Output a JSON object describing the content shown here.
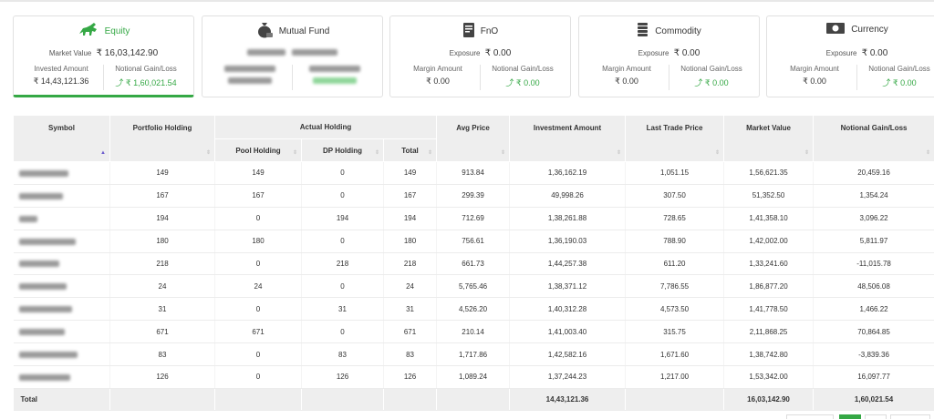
{
  "cards": [
    {
      "title": "Equity",
      "icon": "bull-icon",
      "mid_label": "Market Value",
      "mid_value": "₹ 16,03,142.90",
      "left_label": "Invested Amount",
      "left_value": "₹ 14,43,121.36",
      "right_label": "Notional Gain/Loss",
      "right_value": "₹ 1,60,021.54"
    },
    {
      "title": "Mutual Fund",
      "icon": "money-bag-icon"
    },
    {
      "title": "FnO",
      "icon": "document-icon",
      "mid_label": "Exposure",
      "mid_value": "₹ 0.00",
      "left_label": "Margin Amount",
      "left_value": "₹ 0.00",
      "right_label": "Notional Gain/Loss",
      "right_value": "₹ 0.00"
    },
    {
      "title": "Commodity",
      "icon": "coin-stack-icon",
      "mid_label": "Exposure",
      "mid_value": "₹ 0.00",
      "left_label": "Margin Amount",
      "left_value": "₹ 0.00",
      "right_label": "Notional Gain/Loss",
      "right_value": "₹ 0.00"
    },
    {
      "title": "Currency",
      "icon": "banknote-icon",
      "mid_label": "Exposure",
      "mid_value": "₹ 0.00",
      "left_label": "Margin Amount",
      "left_value": "₹ 0.00",
      "right_label": "Notional Gain/Loss",
      "right_value": "₹ 0.00"
    }
  ],
  "table": {
    "headers": {
      "symbol": "Symbol",
      "portfolio_holding": "Portfolio Holding",
      "actual_holding": "Actual Holding",
      "pool_holding": "Pool Holding",
      "dp_holding": "DP Holding",
      "total": "Total",
      "avg_price": "Avg Price",
      "investment_amount": "Investment Amount",
      "last_trade_price": "Last Trade Price",
      "market_value": "Market Value",
      "notional_gain_loss": "Notional Gain/Loss"
    },
    "rows": [
      {
        "portfolio": "149",
        "pool": "149",
        "dp": "0",
        "total": "149",
        "avg": "913.84",
        "invest": "1,36,162.19",
        "ltp": "1,051.15",
        "mv": "1,56,621.35",
        "gain": "20,459.16"
      },
      {
        "portfolio": "167",
        "pool": "167",
        "dp": "0",
        "total": "167",
        "avg": "299.39",
        "invest": "49,998.26",
        "ltp": "307.50",
        "mv": "51,352.50",
        "gain": "1,354.24"
      },
      {
        "portfolio": "194",
        "pool": "0",
        "dp": "194",
        "total": "194",
        "avg": "712.69",
        "invest": "1,38,261.88",
        "ltp": "728.65",
        "mv": "1,41,358.10",
        "gain": "3,096.22"
      },
      {
        "portfolio": "180",
        "pool": "180",
        "dp": "0",
        "total": "180",
        "avg": "756.61",
        "invest": "1,36,190.03",
        "ltp": "788.90",
        "mv": "1,42,002.00",
        "gain": "5,811.97"
      },
      {
        "portfolio": "218",
        "pool": "0",
        "dp": "218",
        "total": "218",
        "avg": "661.73",
        "invest": "1,44,257.38",
        "ltp": "611.20",
        "mv": "1,33,241.60",
        "gain": "-11,015.78"
      },
      {
        "portfolio": "24",
        "pool": "24",
        "dp": "0",
        "total": "24",
        "avg": "5,765.46",
        "invest": "1,38,371.12",
        "ltp": "7,786.55",
        "mv": "1,86,877.20",
        "gain": "48,506.08"
      },
      {
        "portfolio": "31",
        "pool": "0",
        "dp": "31",
        "total": "31",
        "avg": "4,526.20",
        "invest": "1,40,312.28",
        "ltp": "4,573.50",
        "mv": "1,41,778.50",
        "gain": "1,466.22"
      },
      {
        "portfolio": "671",
        "pool": "671",
        "dp": "0",
        "total": "671",
        "avg": "210.14",
        "invest": "1,41,003.40",
        "ltp": "315.75",
        "mv": "2,11,868.25",
        "gain": "70,864.85"
      },
      {
        "portfolio": "83",
        "pool": "0",
        "dp": "83",
        "total": "83",
        "avg": "1,717.86",
        "invest": "1,42,582.16",
        "ltp": "1,671.60",
        "mv": "1,38,742.80",
        "gain": "-3,839.36"
      },
      {
        "portfolio": "126",
        "pool": "0",
        "dp": "126",
        "total": "126",
        "avg": "1,089.24",
        "invest": "1,37,244.23",
        "ltp": "1,217.00",
        "mv": "1,53,342.00",
        "gain": "16,097.77"
      }
    ],
    "total_row": {
      "label": "Total",
      "invest": "14,43,121.36",
      "mv": "16,03,142.90",
      "gain": "1,60,021.54"
    }
  },
  "colors": {
    "accent_green": "#35a845",
    "header_bg": "#eeeeee"
  }
}
